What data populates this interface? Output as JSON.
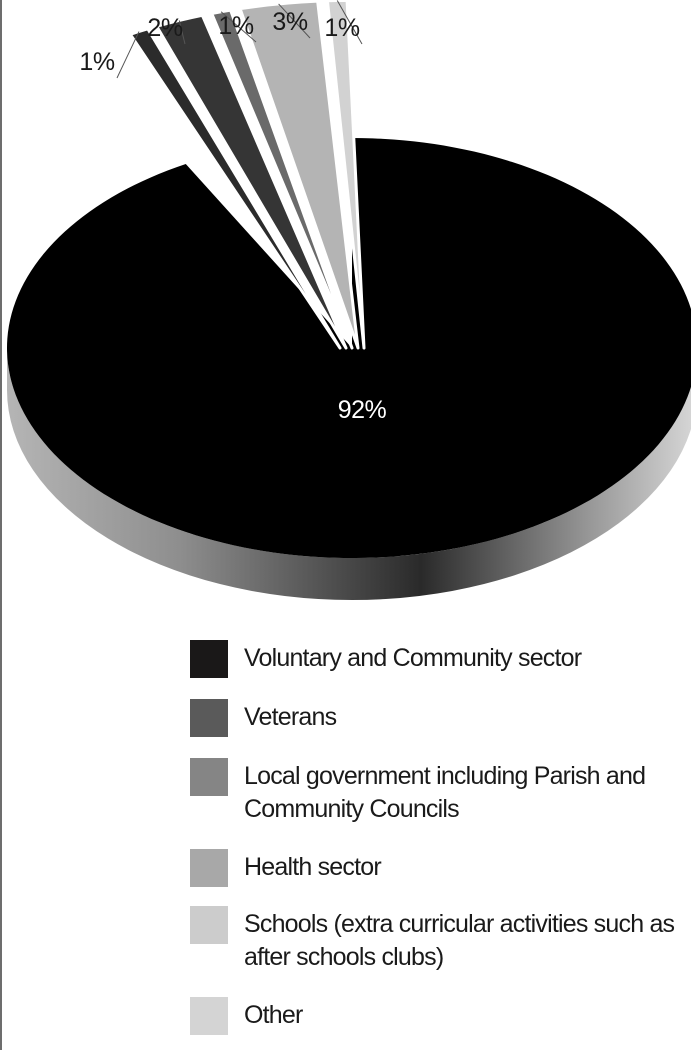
{
  "chart_data": {
    "type": "pie",
    "title": "",
    "slices": [
      {
        "label": "Voluntary and Community sector",
        "value": 92,
        "display": "92%",
        "color": "#000000"
      },
      {
        "label": "Veterans",
        "value": 1,
        "display": "1%",
        "color": "#2b2b2b"
      },
      {
        "label": "Local government including Parish and Community Councils",
        "value": 2,
        "display": "2%",
        "color": "#353535"
      },
      {
        "label": "Health sector",
        "value": 1,
        "display": "1%",
        "color": "#6a6a6a"
      },
      {
        "label": "Schools (extra curricular activities such as after schools clubs)",
        "value": 3,
        "display": "3%",
        "color": "#b4b4b4"
      },
      {
        "label": "Other",
        "value": 1,
        "display": "1%",
        "color": "#d2d2d2"
      }
    ],
    "legend_placement": "bottom"
  },
  "legend": {
    "items": [
      {
        "label": "Voluntary and Community sector",
        "color": "#1a1818"
      },
      {
        "label": "Veterans",
        "color": "#5a5a5a"
      },
      {
        "label": "Local government including Parish and Community Councils",
        "color": "#858585"
      },
      {
        "label": "Health sector",
        "color": "#a8a8a8"
      },
      {
        "label": "Schools (extra curricular activities such as after schools clubs)",
        "color": "#cccccc"
      },
      {
        "label": "Other",
        "color": "#d4d4d4"
      }
    ]
  }
}
